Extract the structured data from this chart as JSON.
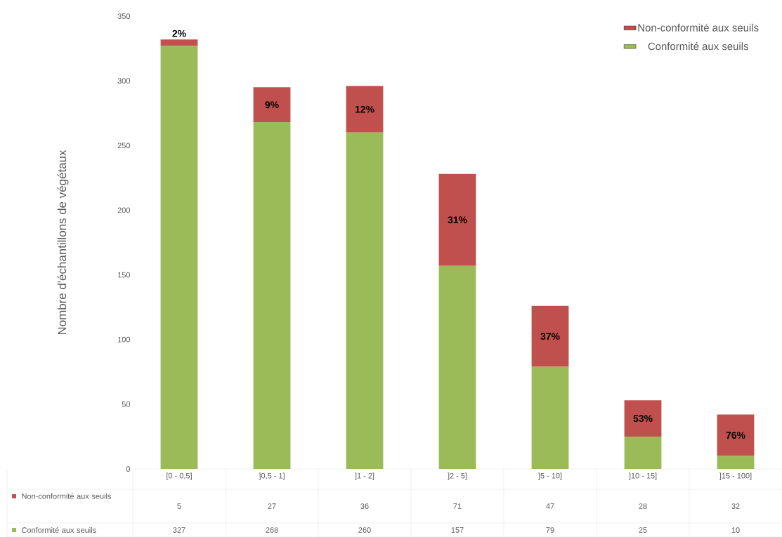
{
  "chart_data": {
    "type": "bar",
    "stacked": true,
    "ylabel": "Nombre d'échantillons de végétaux",
    "categories": [
      "[0 - 0,5]",
      "]0,5 - 1]",
      "]1 - 2]",
      "]2 - 5]",
      "]5 - 10]",
      "]10 - 15]",
      "]15 - 100]"
    ],
    "series": [
      {
        "name": "Conformité aux seuils",
        "color": "#9bbb59",
        "values": [
          327,
          268,
          260,
          157,
          79,
          25,
          10
        ]
      },
      {
        "name": "Non-conformité aux seuils",
        "color": "#c0504d",
        "values": [
          5,
          27,
          36,
          71,
          47,
          28,
          32
        ]
      }
    ],
    "ylim": [
      0,
      350
    ],
    "yticks": [
      0,
      50,
      100,
      150,
      200,
      250,
      300,
      350
    ],
    "legend": "top right",
    "data_labels": true,
    "annotations": [
      "2%",
      "9%",
      "12%",
      "31%",
      "37%",
      "53%",
      "76%"
    ]
  }
}
